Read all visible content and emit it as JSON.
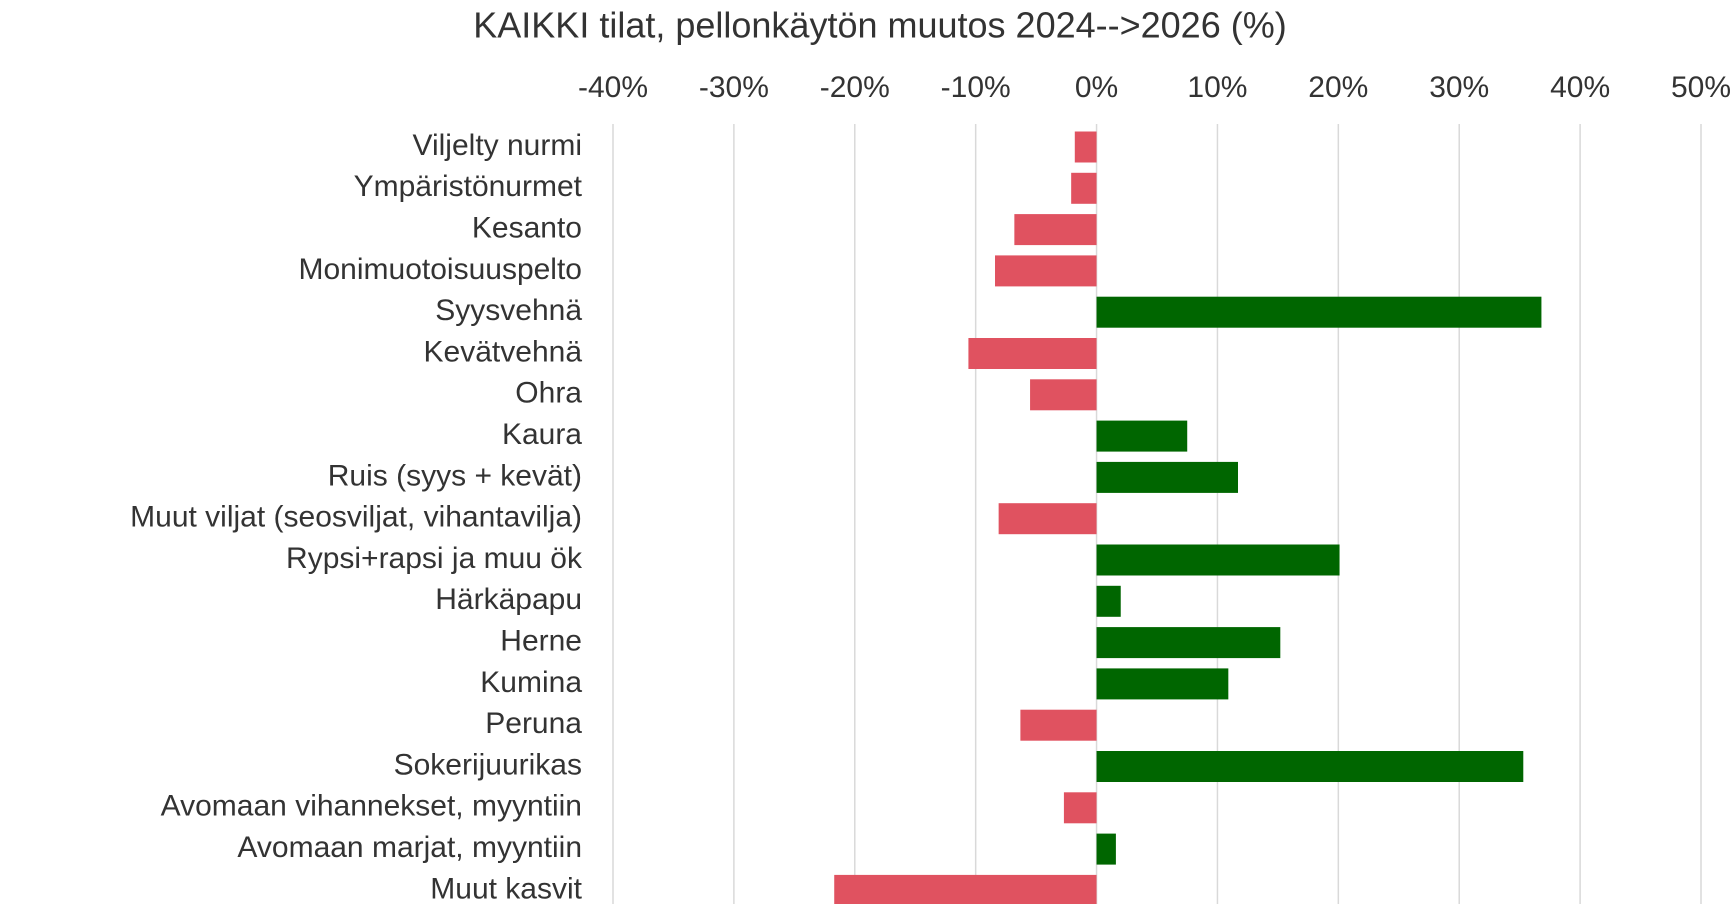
{
  "chart_data": {
    "type": "hbar",
    "title": "KAIKKI tilat, pellonkäytön muutos 2024-->2026 (%)",
    "categories": [
      "Viljelty nurmi",
      "Ympäristönurmet",
      "Kesanto",
      "Monimuotoisuuspelto",
      "Syysvehnä",
      "Kevätvehnä",
      "Ohra",
      "Kaura",
      "Ruis (syys + kevät)",
      "Muut viljat (seosviljat, vihantavilja)",
      "Rypsi+rapsi ja muu ök",
      "Härkäpapu",
      "Herne",
      "Kumina",
      "Peruna",
      "Sokerijuurikas",
      "Avomaan vihannekset, myyntiin",
      "Avomaan marjat, myyntiin",
      "Muut kasvit"
    ],
    "values": [
      -1.8,
      -2.1,
      -6.8,
      -8.4,
      36.8,
      -10.6,
      -5.5,
      7.5,
      11.7,
      -8.1,
      20.1,
      2.0,
      15.2,
      10.9,
      -6.3,
      35.3,
      -2.7,
      1.6,
      -21.7
    ],
    "positive_color": "#006600",
    "negative_color": "#e05260",
    "xlim": [
      -40,
      50
    ],
    "xticks": [
      {
        "value": -40,
        "label": "-40%"
      },
      {
        "value": -30,
        "label": "-30%"
      },
      {
        "value": -20,
        "label": "-20%"
      },
      {
        "value": -10,
        "label": "-10%"
      },
      {
        "value": 0,
        "label": "0%"
      },
      {
        "value": 10,
        "label": "10%"
      },
      {
        "value": 20,
        "label": "20%"
      },
      {
        "value": 30,
        "label": "30%"
      },
      {
        "value": 40,
        "label": "40%"
      },
      {
        "value": 50,
        "label": "50%"
      }
    ],
    "grid": true
  }
}
